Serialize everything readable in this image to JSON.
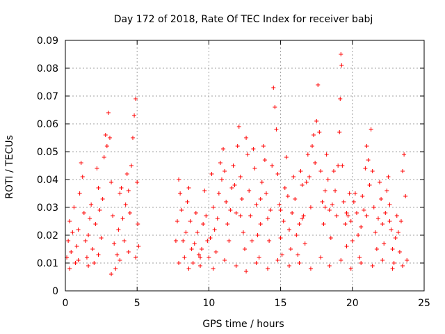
{
  "chart_data": {
    "type": "scatter",
    "title": "Day 172 of 2018, Rate Of TEC Index for receiver babj",
    "xlabel": "GPS time / hours",
    "ylabel": "ROTI / TECUs",
    "xlim": [
      0,
      25
    ],
    "ylim": [
      0,
      0.09
    ],
    "x_ticks": [
      0,
      5,
      10,
      15,
      20,
      25
    ],
    "x_tick_labels": [
      "0",
      "5",
      "10",
      "15",
      "20",
      "25"
    ],
    "y_ticks": [
      0,
      0.01,
      0.02,
      0.03,
      0.04,
      0.05,
      0.06,
      0.07,
      0.08,
      0.09
    ],
    "y_tick_labels": [
      "0",
      "0.01",
      "0.02",
      "0.03",
      "0.04",
      "0.05",
      "0.06",
      "0.07",
      "0.08",
      "0.09"
    ],
    "grid": true,
    "marker": "plus",
    "color": "#ff0000",
    "series": [
      {
        "name": "ROTI",
        "points": [
          [
            0.1,
            0.012
          ],
          [
            0.2,
            0.018
          ],
          [
            0.3,
            0.025
          ],
          [
            0.4,
            0.014
          ],
          [
            0.5,
            0.021
          ],
          [
            0.6,
            0.03
          ],
          [
            0.7,
            0.01
          ],
          [
            0.8,
            0.016
          ],
          [
            0.9,
            0.022
          ],
          [
            1.0,
            0.035
          ],
          [
            1.1,
            0.046
          ],
          [
            1.2,
            0.041
          ],
          [
            1.3,
            0.028
          ],
          [
            1.4,
            0.018
          ],
          [
            1.5,
            0.012
          ],
          [
            1.6,
            0.02
          ],
          [
            1.7,
            0.026
          ],
          [
            1.8,
            0.031
          ],
          [
            1.9,
            0.015
          ],
          [
            2.0,
            0.01
          ],
          [
            2.1,
            0.024
          ],
          [
            2.2,
            0.044
          ],
          [
            2.3,
            0.037
          ],
          [
            2.4,
            0.029
          ],
          [
            2.5,
            0.019
          ],
          [
            2.6,
            0.033
          ],
          [
            2.7,
            0.048
          ],
          [
            2.8,
            0.056
          ],
          [
            2.9,
            0.052
          ],
          [
            3.0,
            0.064
          ],
          [
            3.1,
            0.055
          ],
          [
            3.2,
            0.039
          ],
          [
            3.3,
            0.027
          ],
          [
            3.4,
            0.017
          ],
          [
            3.5,
            0.008
          ],
          [
            3.6,
            0.013
          ],
          [
            3.7,
            0.022
          ],
          [
            3.8,
            0.035
          ],
          [
            3.9,
            0.037
          ],
          [
            4.0,
            0.026
          ],
          [
            4.1,
            0.018
          ],
          [
            4.2,
            0.031
          ],
          [
            4.3,
            0.042
          ],
          [
            4.4,
            0.036
          ],
          [
            4.5,
            0.028
          ],
          [
            4.6,
            0.045
          ],
          [
            4.7,
            0.055
          ],
          [
            4.8,
            0.063
          ],
          [
            4.9,
            0.069
          ],
          [
            5.0,
            0.039
          ],
          [
            5.05,
            0.024
          ],
          [
            5.1,
            0.016
          ],
          [
            0.3,
            0.008
          ],
          [
            0.9,
            0.011
          ],
          [
            1.6,
            0.009
          ],
          [
            2.3,
            0.013
          ],
          [
            3.2,
            0.006
          ],
          [
            3.8,
            0.011
          ],
          [
            4.4,
            0.014
          ],
          [
            4.9,
            0.012
          ],
          [
            7.7,
            0.018
          ],
          [
            7.8,
            0.025
          ],
          [
            7.9,
            0.04
          ],
          [
            8.0,
            0.035
          ],
          [
            8.1,
            0.029
          ],
          [
            8.2,
            0.018
          ],
          [
            8.3,
            0.012
          ],
          [
            8.4,
            0.021
          ],
          [
            8.5,
            0.032
          ],
          [
            8.6,
            0.037
          ],
          [
            8.7,
            0.025
          ],
          [
            8.8,
            0.015
          ],
          [
            8.9,
            0.01
          ],
          [
            9.0,
            0.017
          ],
          [
            9.1,
            0.028
          ],
          [
            9.2,
            0.021
          ],
          [
            9.3,
            0.013
          ],
          [
            9.4,
            0.009
          ],
          [
            9.5,
            0.015
          ],
          [
            9.6,
            0.024
          ],
          [
            9.7,
            0.036
          ],
          [
            9.8,
            0.027
          ],
          [
            9.9,
            0.018
          ],
          [
            10.0,
            0.012
          ],
          [
            10.1,
            0.019
          ],
          [
            10.2,
            0.042
          ],
          [
            10.3,
            0.03
          ],
          [
            10.4,
            0.022
          ],
          [
            10.5,
            0.014
          ],
          [
            10.6,
            0.026
          ],
          [
            10.7,
            0.035
          ],
          [
            10.8,
            0.046
          ],
          [
            10.9,
            0.04
          ],
          [
            11.0,
            0.051
          ],
          [
            11.1,
            0.043
          ],
          [
            11.2,
            0.032
          ],
          [
            11.3,
            0.024
          ],
          [
            11.4,
            0.018
          ],
          [
            11.5,
            0.029
          ],
          [
            11.6,
            0.037
          ],
          [
            11.7,
            0.045
          ],
          [
            11.8,
            0.038
          ],
          [
            11.9,
            0.028
          ],
          [
            12.0,
            0.052
          ],
          [
            12.1,
            0.059
          ],
          [
            12.2,
            0.041
          ],
          [
            12.3,
            0.033
          ],
          [
            12.4,
            0.021
          ],
          [
            12.5,
            0.015
          ],
          [
            12.6,
            0.055
          ],
          [
            12.7,
            0.049
          ],
          [
            12.8,
            0.036
          ],
          [
            12.9,
            0.027
          ],
          [
            13.0,
            0.018
          ],
          [
            13.1,
            0.051
          ],
          [
            13.2,
            0.044
          ],
          [
            13.3,
            0.031
          ],
          [
            13.4,
            0.02
          ],
          [
            13.5,
            0.012
          ],
          [
            13.6,
            0.024
          ],
          [
            13.7,
            0.039
          ],
          [
            13.8,
            0.052
          ],
          [
            13.9,
            0.047
          ],
          [
            14.0,
            0.035
          ],
          [
            14.1,
            0.026
          ],
          [
            14.2,
            0.018
          ],
          [
            14.3,
            0.029
          ],
          [
            14.4,
            0.045
          ],
          [
            14.5,
            0.073
          ],
          [
            14.6,
            0.066
          ],
          [
            14.7,
            0.058
          ],
          [
            14.8,
            0.042
          ],
          [
            14.9,
            0.031
          ],
          [
            15.0,
            0.019
          ],
          [
            15.1,
            0.013
          ],
          [
            15.2,
            0.025
          ],
          [
            15.3,
            0.037
          ],
          [
            15.4,
            0.048
          ],
          [
            15.5,
            0.034
          ],
          [
            15.6,
            0.022
          ],
          [
            15.7,
            0.015
          ],
          [
            15.8,
            0.028
          ],
          [
            15.9,
            0.041
          ],
          [
            16.0,
            0.033
          ],
          [
            16.1,
            0.02
          ],
          [
            16.2,
            0.013
          ],
          [
            16.3,
            0.024
          ],
          [
            16.4,
            0.043
          ],
          [
            16.5,
            0.038
          ],
          [
            16.6,
            0.027
          ],
          [
            16.7,
            0.017
          ],
          [
            16.8,
            0.039
          ],
          [
            16.9,
            0.049
          ],
          [
            17.0,
            0.041
          ],
          [
            17.1,
            0.03
          ],
          [
            17.2,
            0.052
          ],
          [
            17.3,
            0.056
          ],
          [
            17.4,
            0.046
          ],
          [
            17.5,
            0.061
          ],
          [
            17.6,
            0.074
          ],
          [
            17.7,
            0.057
          ],
          [
            17.8,
            0.043
          ],
          [
            17.9,
            0.032
          ],
          [
            18.0,
            0.024
          ],
          [
            18.1,
            0.036
          ],
          [
            18.2,
            0.049
          ],
          [
            18.3,
            0.04
          ],
          [
            18.4,
            0.029
          ],
          [
            18.5,
            0.019
          ],
          [
            18.6,
            0.031
          ],
          [
            18.7,
            0.043
          ],
          [
            18.8,
            0.036
          ],
          [
            18.9,
            0.027
          ],
          [
            19.0,
            0.045
          ],
          [
            19.1,
            0.057
          ],
          [
            19.15,
            0.069
          ],
          [
            19.2,
            0.085
          ],
          [
            19.25,
            0.081
          ],
          [
            19.3,
            0.045
          ],
          [
            19.4,
            0.032
          ],
          [
            19.5,
            0.024
          ],
          [
            19.6,
            0.016
          ],
          [
            19.7,
            0.027
          ],
          [
            19.8,
            0.035
          ],
          [
            19.9,
            0.025
          ],
          [
            20.0,
            0.018
          ],
          [
            20.1,
            0.032
          ],
          [
            20.2,
            0.035
          ],
          [
            20.3,
            0.028
          ],
          [
            20.4,
            0.02
          ],
          [
            20.5,
            0.012
          ],
          [
            20.6,
            0.023
          ],
          [
            20.7,
            0.034
          ],
          [
            20.8,
            0.029
          ],
          [
            20.9,
            0.044
          ],
          [
            21.0,
            0.052
          ],
          [
            21.1,
            0.047
          ],
          [
            21.2,
            0.038
          ],
          [
            21.3,
            0.058
          ],
          [
            21.4,
            0.043
          ],
          [
            21.5,
            0.03
          ],
          [
            21.6,
            0.021
          ],
          [
            21.7,
            0.015
          ],
          [
            21.8,
            0.026
          ],
          [
            21.9,
            0.039
          ],
          [
            22.0,
            0.033
          ],
          [
            22.1,
            0.024
          ],
          [
            22.2,
            0.017
          ],
          [
            22.3,
            0.028
          ],
          [
            22.4,
            0.036
          ],
          [
            22.5,
            0.041
          ],
          [
            22.6,
            0.031
          ],
          [
            22.7,
            0.022
          ],
          [
            22.8,
            0.015
          ],
          [
            22.9,
            0.01
          ],
          [
            23.0,
            0.019
          ],
          [
            23.1,
            0.027
          ],
          [
            23.2,
            0.021
          ],
          [
            23.3,
            0.014
          ],
          [
            23.4,
            0.025
          ],
          [
            23.5,
            0.043
          ],
          [
            23.6,
            0.049
          ],
          [
            23.7,
            0.034
          ],
          [
            23.8,
            0.011
          ],
          [
            7.9,
            0.01
          ],
          [
            8.6,
            0.008
          ],
          [
            9.4,
            0.012
          ],
          [
            10.3,
            0.008
          ],
          [
            11.1,
            0.011
          ],
          [
            11.9,
            0.009
          ],
          [
            12.6,
            0.007
          ],
          [
            13.3,
            0.01
          ],
          [
            14.1,
            0.008
          ],
          [
            14.8,
            0.011
          ],
          [
            15.6,
            0.009
          ],
          [
            16.3,
            0.01
          ],
          [
            17.1,
            0.008
          ],
          [
            17.8,
            0.012
          ],
          [
            18.4,
            0.009
          ],
          [
            19.2,
            0.011
          ],
          [
            19.9,
            0.008
          ],
          [
            20.6,
            0.01
          ],
          [
            21.4,
            0.009
          ],
          [
            22.1,
            0.011
          ],
          [
            22.8,
            0.008
          ],
          [
            23.5,
            0.009
          ],
          [
            12.2,
            0.027
          ],
          [
            13.6,
            0.033
          ],
          [
            15.0,
            0.029
          ],
          [
            16.5,
            0.026
          ],
          [
            18.1,
            0.03
          ],
          [
            19.6,
            0.028
          ],
          [
            21.0,
            0.027
          ],
          [
            22.6,
            0.025
          ]
        ]
      }
    ]
  }
}
